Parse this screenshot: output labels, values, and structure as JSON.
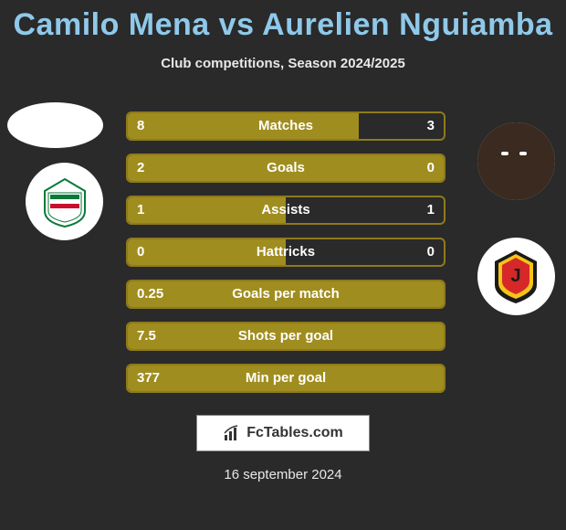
{
  "title": "Camilo Mena vs Aurelien Nguiamba",
  "subtitle": "Club competitions, Season 2024/2025",
  "date": "16 september 2024",
  "footer_brand": "FcTables.com",
  "colors": {
    "background": "#2a2a2a",
    "title": "#8fc9ea",
    "bar_fill": "#a08d1f",
    "bar_border": "#8e7a1a",
    "text": "#ffffff"
  },
  "bars": [
    {
      "label": "Matches",
      "left": "8",
      "right": "3",
      "fill_pct": 73
    },
    {
      "label": "Goals",
      "left": "2",
      "right": "0",
      "fill_pct": 100
    },
    {
      "label": "Assists",
      "left": "1",
      "right": "1",
      "fill_pct": 50
    },
    {
      "label": "Hattricks",
      "left": "0",
      "right": "0",
      "fill_pct": 50
    },
    {
      "label": "Goals per match",
      "left": "0.25",
      "right": "",
      "fill_pct": 100
    },
    {
      "label": "Shots per goal",
      "left": "7.5",
      "right": "",
      "fill_pct": 100
    },
    {
      "label": "Min per goal",
      "left": "377",
      "right": "",
      "fill_pct": 100
    }
  ],
  "team_left_crest": {
    "stripe_green": "#0a7a3a",
    "stripe_white": "#ffffff",
    "stripe_red": "#c8102e"
  },
  "team_right_crest": {
    "shield_black": "#1a1a1a",
    "shield_yellow": "#f5c518",
    "shield_red": "#d62828"
  }
}
